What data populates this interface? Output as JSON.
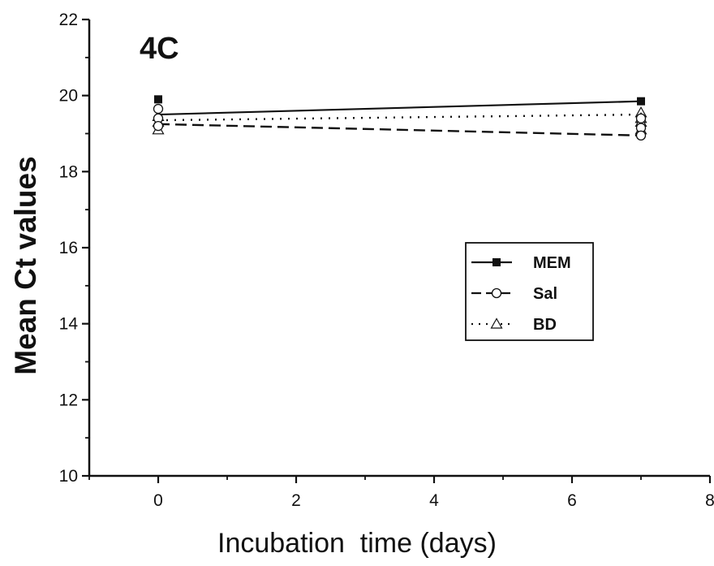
{
  "chart_data": {
    "type": "line",
    "title": "4C",
    "xlabel": "Incubation  time (days)",
    "ylabel": "Mean Ct values",
    "xlim": [
      -1,
      8
    ],
    "ylim": [
      10,
      22
    ],
    "x_ticks": [
      0,
      2,
      4,
      6,
      8
    ],
    "y_ticks": [
      10,
      12,
      14,
      16,
      18,
      20,
      22
    ],
    "grid": false,
    "legend_position": "center-right",
    "series": [
      {
        "name": "MEM",
        "line_style": "solid",
        "marker": "filled-square",
        "points": [
          [
            0,
            19.5
          ],
          [
            7,
            19.85
          ]
        ],
        "replicate_markers": [
          [
            0,
            19.9
          ],
          [
            7,
            19.85
          ]
        ]
      },
      {
        "name": "Sal",
        "line_style": "dashed",
        "marker": "open-circle",
        "points": [
          [
            0,
            19.25
          ],
          [
            7,
            18.95
          ]
        ],
        "replicate_markers": [
          [
            0,
            19.65
          ],
          [
            0,
            19.4
          ],
          [
            0,
            19.2
          ],
          [
            7,
            19.4
          ],
          [
            7,
            19.15
          ],
          [
            7,
            18.95
          ]
        ]
      },
      {
        "name": "BD",
        "line_style": "dotted",
        "marker": "open-triangle",
        "points": [
          [
            0,
            19.35
          ],
          [
            7,
            19.5
          ]
        ],
        "replicate_markers": [
          [
            0,
            19.45
          ],
          [
            0,
            19.3
          ],
          [
            0,
            19.1
          ],
          [
            7,
            19.55
          ],
          [
            7,
            19.4
          ],
          [
            7,
            19.3
          ],
          [
            7,
            19.1
          ]
        ]
      }
    ]
  }
}
